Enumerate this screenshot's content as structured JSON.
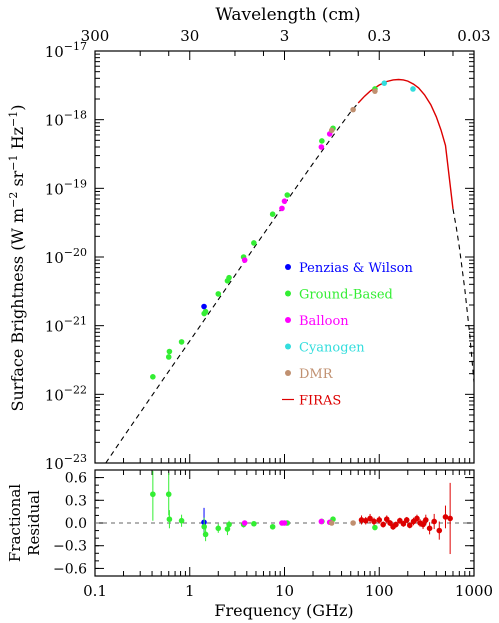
{
  "chart_data": [
    {
      "type": "scatter",
      "panel": "spectrum",
      "top_xlabel": "Wavelength (cm)",
      "top_ticks": [
        "300",
        "30",
        "3",
        "0.3",
        "0.03"
      ],
      "top_tick_values_cm": [
        300,
        30,
        3,
        0.3,
        0.03
      ],
      "ylabel": "Surface Brightness (W m⁻² sr⁻¹ Hz⁻¹)",
      "ylabel_parts": [
        "Surface Brightness (W m",
        "−2",
        " sr",
        "−1",
        " Hz",
        "−1",
        ")"
      ],
      "x_scale": "log",
      "y_scale": "log",
      "xlim": [
        0.1,
        1000
      ],
      "ylim": [
        1e-23,
        1e-17
      ],
      "y_ticks": [
        {
          "value": 1e-23,
          "exp": "−23"
        },
        {
          "value": 1e-22,
          "exp": "−22"
        },
        {
          "value": 1e-21,
          "exp": "−21"
        },
        {
          "value": 1e-20,
          "exp": "−20"
        },
        {
          "value": 1e-19,
          "exp": "−19"
        },
        {
          "value": 1e-18,
          "exp": "−18"
        },
        {
          "value": 1e-17,
          "exp": "−17"
        }
      ],
      "legend_position": "right-middle",
      "series": [
        {
          "name": "Penzias & Wilson",
          "color": "#0000ff",
          "marker": "dot",
          "points": [
            [
              1.415,
              1.9e-21
            ]
          ]
        },
        {
          "name": "Ground-Based",
          "color": "#33ee33",
          "marker": "dot",
          "points": [
            [
              0.408,
              1.8e-22
            ],
            [
              0.6,
              3.5e-22
            ],
            [
              0.61,
              4.2e-22
            ],
            [
              0.82,
              5.8e-22
            ],
            [
              1.42,
              1.5e-21
            ],
            [
              1.47,
              1.6e-21
            ],
            [
              2.0,
              2.9e-21
            ],
            [
              2.5,
              4.5e-21
            ],
            [
              2.6,
              5e-21
            ],
            [
              3.7,
              1e-20
            ],
            [
              4.75,
              1.6e-20
            ],
            [
              7.5,
              4.2e-20
            ],
            [
              10.7,
              8e-20
            ],
            [
              24.8,
              4.9e-19
            ],
            [
              32.5,
              7.5e-19
            ],
            [
              90,
              2.8e-18
            ]
          ]
        },
        {
          "name": "Balloon",
          "color": "#ff00ff",
          "marker": "dot",
          "points": [
            [
              3.8,
              9e-21
            ],
            [
              9.4,
              5.1e-20
            ],
            [
              10,
              6.5e-20
            ],
            [
              24.5,
              4e-19
            ],
            [
              30,
              6.2e-19
            ]
          ]
        },
        {
          "name": "Cyanogen",
          "color": "#33dddd",
          "marker": "dot",
          "points": [
            [
              113,
              3.4e-18
            ],
            [
              227,
              2.8e-18
            ]
          ]
        },
        {
          "name": "DMR",
          "color": "#c09070",
          "marker": "dot",
          "points": [
            [
              31.5,
              7e-19
            ],
            [
              53,
              1.4e-18
            ],
            [
              90,
              2.6e-18
            ]
          ]
        },
        {
          "name": "FIRAS",
          "color": "#dd0000",
          "marker": "line",
          "points": [
            [
              60,
              1.75e-18
            ],
            [
              70,
              2.2e-18
            ],
            [
              80,
              2.6e-18
            ],
            [
              100,
              3.2e-18
            ],
            [
              120,
              3.6e-18
            ],
            [
              140,
              3.8e-18
            ],
            [
              160,
              3.85e-18
            ],
            [
              180,
              3.8e-18
            ],
            [
              200,
              3.65e-18
            ],
            [
              230,
              3.3e-18
            ],
            [
              260,
              2.9e-18
            ],
            [
              300,
              2.3e-18
            ],
            [
              350,
              1.65e-18
            ],
            [
              400,
              1.1e-18
            ],
            [
              450,
              7e-19
            ],
            [
              500,
              4.2e-19
            ],
            [
              600,
              5e-20
            ]
          ]
        }
      ],
      "model_curve": {
        "style": "dashed",
        "color": "#000000",
        "points": [
          [
            0.13,
            1e-23
          ],
          [
            0.2,
            2.4e-23
          ],
          [
            0.3,
            5.4e-23
          ],
          [
            0.5,
            1.5e-22
          ],
          [
            1,
            6e-22
          ],
          [
            2,
            2.4e-21
          ],
          [
            3,
            5.4e-21
          ],
          [
            5,
            1.5e-20
          ],
          [
            10,
            5.9e-20
          ],
          [
            20,
            2.3e-19
          ],
          [
            30,
            5e-19
          ],
          [
            50,
            1.3e-18
          ],
          [
            60,
            1.75e-18
          ],
          [
            600,
            5e-20
          ],
          [
            650,
            2.7e-20
          ],
          [
            700,
            1.4e-20
          ],
          [
            800,
            3.4e-21
          ],
          [
            900,
            7.5e-22
          ],
          [
            1000,
            1.5e-22
          ]
        ]
      }
    },
    {
      "type": "scatter",
      "panel": "residual",
      "ylabel": [
        "Fractional",
        "Residual"
      ],
      "xlabel": "Frequency (GHz)",
      "x_scale": "log",
      "xlim": [
        0.1,
        1000
      ],
      "ylim": [
        -0.7,
        0.7
      ],
      "x_ticks": [
        "0.1",
        "1",
        "10",
        "100",
        "1000"
      ],
      "x_tick_values": [
        0.1,
        1,
        10,
        100,
        1000
      ],
      "y_ticks": [
        "0.6",
        "0.3",
        "0.0",
        "−0.3",
        "−0.6"
      ],
      "y_tick_values": [
        0.6,
        0.3,
        0.0,
        -0.3,
        -0.6
      ],
      "zero_line": "dashed",
      "series": [
        {
          "name": "Penzias & Wilson",
          "color": "#0000ff",
          "points": [
            [
              1.415,
              0.01,
              0.19
            ]
          ]
        },
        {
          "name": "Ground-Based",
          "color": "#33ee33",
          "points": [
            [
              0.408,
              0.38,
              0.35
            ],
            [
              0.6,
              0.38,
              0.28
            ],
            [
              0.61,
              0.05,
              0.12
            ],
            [
              0.82,
              0.03,
              0.08
            ],
            [
              1.42,
              -0.05,
              0.12
            ],
            [
              1.47,
              -0.15,
              0.09
            ],
            [
              2.0,
              -0.07,
              0.06
            ],
            [
              2.5,
              -0.08,
              0.08
            ],
            [
              2.6,
              -0.02,
              0.05
            ],
            [
              3.7,
              -0.02,
              0.04
            ],
            [
              4.75,
              -0.01,
              0.03
            ],
            [
              7.5,
              -0.05,
              0.03
            ],
            [
              10.7,
              0.0,
              0.02
            ],
            [
              24.8,
              0.02,
              0.02
            ],
            [
              32.5,
              0.05,
              0.03
            ],
            [
              90,
              -0.06,
              0.03
            ]
          ]
        },
        {
          "name": "Balloon",
          "color": "#ff00ff",
          "points": [
            [
              3.8,
              0.0,
              0.02
            ],
            [
              9.4,
              0.0,
              0.02
            ],
            [
              10,
              0.0,
              0.02
            ],
            [
              24.5,
              0.02,
              0.02
            ],
            [
              30,
              0.01,
              0.02
            ]
          ]
        },
        {
          "name": "Cyanogen",
          "color": "#33dddd",
          "points": []
        },
        {
          "name": "DMR",
          "color": "#c09070",
          "points": [
            [
              31.5,
              0.0,
              0.02
            ],
            [
              53,
              0.0,
              0.01
            ]
          ]
        },
        {
          "name": "FIRAS",
          "color": "#dd0000",
          "points": [
            [
              65,
              0.04,
              0.06
            ],
            [
              72,
              0.03,
              0.05
            ],
            [
              80,
              0.06,
              0.06
            ],
            [
              88,
              0.02,
              0.05
            ],
            [
              100,
              0.04,
              0.05
            ],
            [
              110,
              -0.02,
              0.04
            ],
            [
              120,
              0.05,
              0.05
            ],
            [
              130,
              0.0,
              0.04
            ],
            [
              140,
              -0.05,
              0.04
            ],
            [
              150,
              -0.02,
              0.04
            ],
            [
              165,
              0.03,
              0.04
            ],
            [
              180,
              -0.01,
              0.04
            ],
            [
              195,
              0.04,
              0.04
            ],
            [
              210,
              -0.03,
              0.04
            ],
            [
              230,
              0.02,
              0.05
            ],
            [
              250,
              0.06,
              0.05
            ],
            [
              270,
              0.0,
              0.05
            ],
            [
              290,
              -0.02,
              0.06
            ],
            [
              310,
              0.04,
              0.07
            ],
            [
              340,
              -0.07,
              0.08
            ],
            [
              380,
              0.02,
              0.1
            ],
            [
              430,
              -0.1,
              0.12
            ],
            [
              500,
              0.08,
              0.15
            ],
            [
              560,
              0.06,
              0.47
            ]
          ]
        }
      ]
    }
  ],
  "legend": [
    {
      "label": "Penzias & Wilson",
      "color": "#0000ff",
      "marker": "dot"
    },
    {
      "label": "Ground-Based",
      "color": "#33ee33",
      "marker": "dot"
    },
    {
      "label": "Balloon",
      "color": "#ff00ff",
      "marker": "dot"
    },
    {
      "label": "Cyanogen",
      "color": "#33dddd",
      "marker": "dot"
    },
    {
      "label": "DMR",
      "color": "#c09070",
      "marker": "dot"
    },
    {
      "label": "FIRAS",
      "color": "#dd0000",
      "marker": "line"
    }
  ]
}
